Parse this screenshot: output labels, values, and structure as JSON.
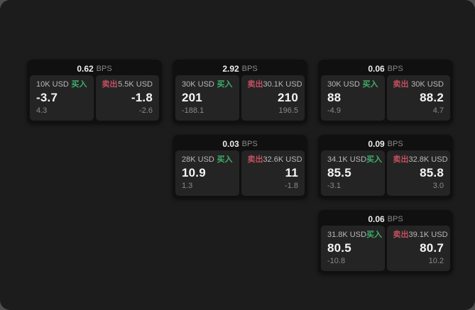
{
  "labels": {
    "bps_unit": "BPS",
    "buy": "买入",
    "sell": "卖出"
  },
  "colors": {
    "window_bg": "#1c1c1c",
    "card_bg": "#101010",
    "panel_bg": "#242424",
    "buy_green": "#3fae6b",
    "sell_red": "#c25060",
    "value_white": "#f4f4f4",
    "muted_gray": "#8a8a8a"
  },
  "cards": [
    {
      "col": 1,
      "row": 1,
      "bps": "0.62",
      "buy": {
        "amount": "10K USD",
        "value": "-3.7",
        "delta": "4.3"
      },
      "sell": {
        "amount": "5.5K USD",
        "value": "-1.8",
        "delta": "-2.6"
      }
    },
    {
      "col": 2,
      "row": 1,
      "bps": "2.92",
      "buy": {
        "amount": "30K USD",
        "value": "201",
        "delta": "-188.1"
      },
      "sell": {
        "amount": "30.1K USD",
        "value": "210",
        "delta": "196.5"
      }
    },
    {
      "col": 3,
      "row": 1,
      "bps": "0.06",
      "buy": {
        "amount": "30K USD",
        "value": "88",
        "delta": "-4.9"
      },
      "sell": {
        "amount": "30K USD",
        "value": "88.2",
        "delta": "4.7"
      }
    },
    {
      "col": 2,
      "row": 2,
      "bps": "0.03",
      "buy": {
        "amount": "28K USD",
        "value": "10.9",
        "delta": "1.3"
      },
      "sell": {
        "amount": "32.6K USD",
        "value": "11",
        "delta": "-1.8"
      }
    },
    {
      "col": 3,
      "row": 2,
      "bps": "0.09",
      "buy": {
        "amount": "34.1K USD",
        "value": "85.5",
        "delta": "-3.1"
      },
      "sell": {
        "amount": "32.8K USD",
        "value": "85.8",
        "delta": "3.0"
      }
    },
    {
      "col": 3,
      "row": 3,
      "bps": "0.06",
      "buy": {
        "amount": "31.8K USD",
        "value": "80.5",
        "delta": "-10.8"
      },
      "sell": {
        "amount": "39.1K USD",
        "value": "80.7",
        "delta": "10.2"
      }
    }
  ]
}
